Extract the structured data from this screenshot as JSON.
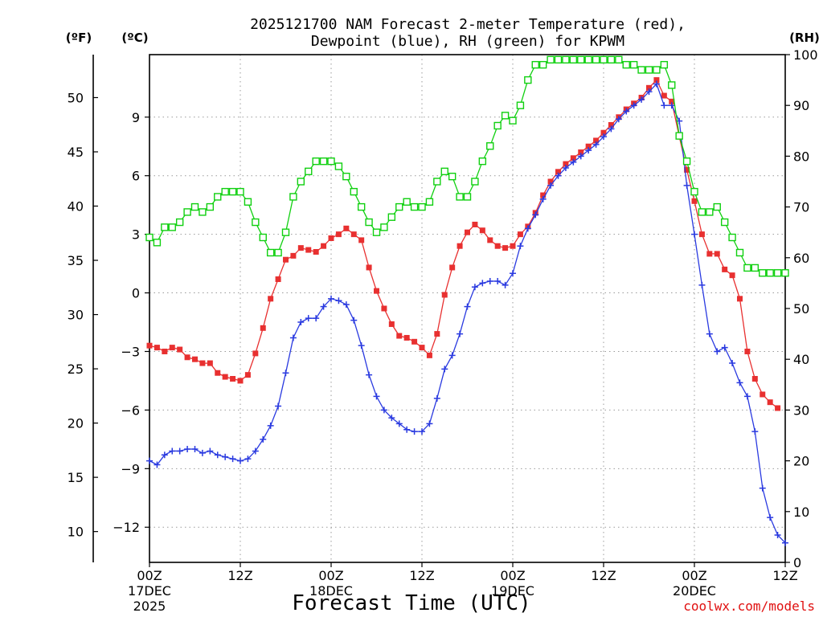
{
  "chart_data": {
    "type": "line",
    "title_lines": [
      "2025121700 NAM Forecast 2-meter Temperature (red),",
      "Dewpoint (blue), RH (green) for KPWM"
    ],
    "xlabel": "Forecast Time (UTC)",
    "credit": "coolwx.com/models",
    "unit_labels": {
      "fahrenheit": "(ºF)",
      "celsius": "(ºC)",
      "rh": "(RH)"
    },
    "x_unit": "hours since 17DEC2025 00Z",
    "x_range": [
      0,
      84
    ],
    "x_ticks": [
      {
        "x": 0,
        "label": "00Z",
        "sub1": "17DEC",
        "sub2": "2025"
      },
      {
        "x": 12,
        "label": "12Z",
        "sub1": "",
        "sub2": ""
      },
      {
        "x": 24,
        "label": "00Z",
        "sub1": "18DEC",
        "sub2": ""
      },
      {
        "x": 36,
        "label": "12Z",
        "sub1": "",
        "sub2": ""
      },
      {
        "x": 48,
        "label": "00Z",
        "sub1": "19DEC",
        "sub2": ""
      },
      {
        "x": 60,
        "label": "12Z",
        "sub1": "",
        "sub2": ""
      },
      {
        "x": 72,
        "label": "00Z",
        "sub1": "20DEC",
        "sub2": ""
      },
      {
        "x": 84,
        "label": "12Z",
        "sub1": "",
        "sub2": ""
      }
    ],
    "y_celsius": {
      "range": [
        -13.8,
        12.2
      ],
      "ticks": [
        9,
        6,
        3,
        0,
        -3,
        -6,
        -9,
        -12
      ],
      "tick_labels": [
        "9",
        "6",
        "3",
        "0",
        "−3",
        "−6",
        "−9",
        "−12"
      ]
    },
    "y_fahrenheit": {
      "ticks": [
        50,
        45,
        40,
        35,
        30,
        25,
        20,
        15,
        10
      ],
      "tick_labels": [
        "50",
        "45",
        "40",
        "35",
        "30",
        "25",
        "20",
        "15",
        "10"
      ]
    },
    "y_rh": {
      "range": [
        0,
        100
      ],
      "ticks": [
        100,
        90,
        80,
        70,
        60,
        50,
        40,
        30,
        20,
        10,
        0
      ],
      "tick_labels": [
        "100",
        "90",
        "80",
        "70",
        "60",
        "50",
        "40",
        "30",
        "20",
        "10",
        "0"
      ]
    },
    "grid": true,
    "series": [
      {
        "name": "Temperature",
        "color": "#e83030",
        "marker": "filled-square",
        "axis": "celsius",
        "points": [
          [
            0,
            -2.7
          ],
          [
            1,
            -2.8
          ],
          [
            2,
            -3.0
          ],
          [
            3,
            -2.8
          ],
          [
            4,
            -2.9
          ],
          [
            5,
            -3.3
          ],
          [
            6,
            -3.4
          ],
          [
            7,
            -3.6
          ],
          [
            8,
            -3.6
          ],
          [
            9,
            -4.1
          ],
          [
            10,
            -4.3
          ],
          [
            11,
            -4.4
          ],
          [
            12,
            -4.5
          ],
          [
            13,
            -4.2
          ],
          [
            14,
            -3.1
          ],
          [
            15,
            -1.8
          ],
          [
            16,
            -0.3
          ],
          [
            17,
            0.7
          ],
          [
            18,
            1.7
          ],
          [
            19,
            1.9
          ],
          [
            20,
            2.3
          ],
          [
            21,
            2.2
          ],
          [
            22,
            2.1
          ],
          [
            23,
            2.4
          ],
          [
            24,
            2.8
          ],
          [
            25,
            3.0
          ],
          [
            26,
            3.3
          ],
          [
            27,
            3.0
          ],
          [
            28,
            2.7
          ],
          [
            29,
            1.3
          ],
          [
            30,
            0.1
          ],
          [
            31,
            -0.8
          ],
          [
            32,
            -1.6
          ],
          [
            33,
            -2.2
          ],
          [
            34,
            -2.3
          ],
          [
            35,
            -2.5
          ],
          [
            36,
            -2.8
          ],
          [
            37,
            -3.2
          ],
          [
            38,
            -2.1
          ],
          [
            39,
            -0.1
          ],
          [
            40,
            1.3
          ],
          [
            41,
            2.4
          ],
          [
            42,
            3.1
          ],
          [
            43,
            3.5
          ],
          [
            44,
            3.2
          ],
          [
            45,
            2.7
          ],
          [
            46,
            2.4
          ],
          [
            47,
            2.3
          ],
          [
            48,
            2.4
          ],
          [
            49,
            3.0
          ],
          [
            50,
            3.4
          ],
          [
            51,
            4.1
          ],
          [
            52,
            5.0
          ],
          [
            53,
            5.7
          ],
          [
            54,
            6.2
          ],
          [
            55,
            6.6
          ],
          [
            56,
            6.9
          ],
          [
            57,
            7.2
          ],
          [
            58,
            7.5
          ],
          [
            59,
            7.8
          ],
          [
            60,
            8.2
          ],
          [
            61,
            8.6
          ],
          [
            62,
            9.0
          ],
          [
            63,
            9.4
          ],
          [
            64,
            9.7
          ],
          [
            65,
            10.0
          ],
          [
            66,
            10.5
          ],
          [
            67,
            10.9
          ],
          [
            68,
            10.1
          ],
          [
            69,
            9.8
          ],
          [
            70,
            8.0
          ],
          [
            71,
            6.3
          ],
          [
            72,
            4.7
          ],
          [
            73,
            3.0
          ],
          [
            74,
            2.0
          ],
          [
            75,
            2.0
          ],
          [
            76,
            1.2
          ],
          [
            77,
            0.9
          ],
          [
            78,
            -0.3
          ],
          [
            79,
            -3.0
          ],
          [
            80,
            -4.4
          ],
          [
            81,
            -5.2
          ],
          [
            82,
            -5.6
          ],
          [
            83,
            -5.9
          ]
        ]
      },
      {
        "name": "Dewpoint",
        "color": "#2a3ae0",
        "marker": "plus",
        "axis": "celsius",
        "points": [
          [
            0,
            -8.6
          ],
          [
            1,
            -8.8
          ],
          [
            2,
            -8.3
          ],
          [
            3,
            -8.1
          ],
          [
            4,
            -8.1
          ],
          [
            5,
            -8.0
          ],
          [
            6,
            -8.0
          ],
          [
            7,
            -8.2
          ],
          [
            8,
            -8.1
          ],
          [
            9,
            -8.3
          ],
          [
            10,
            -8.4
          ],
          [
            11,
            -8.5
          ],
          [
            12,
            -8.6
          ],
          [
            13,
            -8.5
          ],
          [
            14,
            -8.1
          ],
          [
            15,
            -7.5
          ],
          [
            16,
            -6.8
          ],
          [
            17,
            -5.8
          ],
          [
            18,
            -4.1
          ],
          [
            19,
            -2.3
          ],
          [
            20,
            -1.5
          ],
          [
            21,
            -1.3
          ],
          [
            22,
            -1.3
          ],
          [
            23,
            -0.7
          ],
          [
            24,
            -0.3
          ],
          [
            25,
            -0.4
          ],
          [
            26,
            -0.6
          ],
          [
            27,
            -1.4
          ],
          [
            28,
            -2.7
          ],
          [
            29,
            -4.2
          ],
          [
            30,
            -5.3
          ],
          [
            31,
            -6.0
          ],
          [
            32,
            -6.4
          ],
          [
            33,
            -6.7
          ],
          [
            34,
            -7.0
          ],
          [
            35,
            -7.1
          ],
          [
            36,
            -7.1
          ],
          [
            37,
            -6.7
          ],
          [
            38,
            -5.4
          ],
          [
            39,
            -3.9
          ],
          [
            40,
            -3.2
          ],
          [
            41,
            -2.1
          ],
          [
            42,
            -0.7
          ],
          [
            43,
            0.3
          ],
          [
            44,
            0.5
          ],
          [
            45,
            0.6
          ],
          [
            46,
            0.6
          ],
          [
            47,
            0.4
          ],
          [
            48,
            1.0
          ],
          [
            49,
            2.4
          ],
          [
            50,
            3.3
          ],
          [
            51,
            4.0
          ],
          [
            52,
            4.8
          ],
          [
            53,
            5.5
          ],
          [
            54,
            6.0
          ],
          [
            55,
            6.4
          ],
          [
            56,
            6.7
          ],
          [
            57,
            7.0
          ],
          [
            58,
            7.3
          ],
          [
            59,
            7.6
          ],
          [
            60,
            8.0
          ],
          [
            61,
            8.4
          ],
          [
            62,
            8.9
          ],
          [
            63,
            9.3
          ],
          [
            64,
            9.6
          ],
          [
            65,
            9.9
          ],
          [
            66,
            10.3
          ],
          [
            67,
            10.7
          ],
          [
            68,
            9.6
          ],
          [
            69,
            9.6
          ],
          [
            70,
            8.8
          ],
          [
            71,
            5.5
          ],
          [
            72,
            3.0
          ],
          [
            73,
            0.4
          ],
          [
            74,
            -2.1
          ],
          [
            75,
            -3.0
          ],
          [
            76,
            -2.8
          ],
          [
            77,
            -3.6
          ],
          [
            78,
            -4.6
          ],
          [
            79,
            -5.3
          ],
          [
            80,
            -7.1
          ],
          [
            81,
            -10.0
          ],
          [
            82,
            -11.5
          ],
          [
            83,
            -12.4
          ],
          [
            84,
            -12.8
          ]
        ]
      },
      {
        "name": "RH",
        "color": "#10d010",
        "marker": "open-square",
        "axis": "rh",
        "points": [
          [
            0,
            64
          ],
          [
            1,
            63
          ],
          [
            2,
            66
          ],
          [
            3,
            66
          ],
          [
            4,
            67
          ],
          [
            5,
            69
          ],
          [
            6,
            70
          ],
          [
            7,
            69
          ],
          [
            8,
            70
          ],
          [
            9,
            72
          ],
          [
            10,
            73
          ],
          [
            11,
            73
          ],
          [
            12,
            73
          ],
          [
            13,
            71
          ],
          [
            14,
            67
          ],
          [
            15,
            64
          ],
          [
            16,
            61
          ],
          [
            17,
            61
          ],
          [
            18,
            65
          ],
          [
            19,
            72
          ],
          [
            20,
            75
          ],
          [
            21,
            77
          ],
          [
            22,
            79
          ],
          [
            23,
            79
          ],
          [
            24,
            79
          ],
          [
            25,
            78
          ],
          [
            26,
            76
          ],
          [
            27,
            73
          ],
          [
            28,
            70
          ],
          [
            29,
            67
          ],
          [
            30,
            65
          ],
          [
            31,
            66
          ],
          [
            32,
            68
          ],
          [
            33,
            70
          ],
          [
            34,
            71
          ],
          [
            35,
            70
          ],
          [
            36,
            70
          ],
          [
            37,
            71
          ],
          [
            38,
            75
          ],
          [
            39,
            77
          ],
          [
            40,
            76
          ],
          [
            41,
            72
          ],
          [
            42,
            72
          ],
          [
            43,
            75
          ],
          [
            44,
            79
          ],
          [
            45,
            82
          ],
          [
            46,
            86
          ],
          [
            47,
            88
          ],
          [
            48,
            87
          ],
          [
            49,
            90
          ],
          [
            50,
            95
          ],
          [
            51,
            98
          ],
          [
            52,
            98
          ],
          [
            53,
            99
          ],
          [
            54,
            99
          ],
          [
            55,
            99
          ],
          [
            56,
            99
          ],
          [
            57,
            99
          ],
          [
            58,
            99
          ],
          [
            59,
            99
          ],
          [
            60,
            99
          ],
          [
            61,
            99
          ],
          [
            62,
            99
          ],
          [
            63,
            98
          ],
          [
            64,
            98
          ],
          [
            65,
            97
          ],
          [
            66,
            97
          ],
          [
            67,
            97
          ],
          [
            68,
            98
          ],
          [
            69,
            94
          ],
          [
            70,
            84
          ],
          [
            71,
            79
          ],
          [
            72,
            73
          ],
          [
            73,
            69
          ],
          [
            74,
            69
          ],
          [
            75,
            70
          ],
          [
            76,
            67
          ],
          [
            77,
            64
          ],
          [
            78,
            61
          ],
          [
            79,
            58
          ],
          [
            80,
            58
          ],
          [
            81,
            57
          ],
          [
            82,
            57
          ],
          [
            83,
            57
          ],
          [
            84,
            57
          ]
        ]
      }
    ]
  }
}
